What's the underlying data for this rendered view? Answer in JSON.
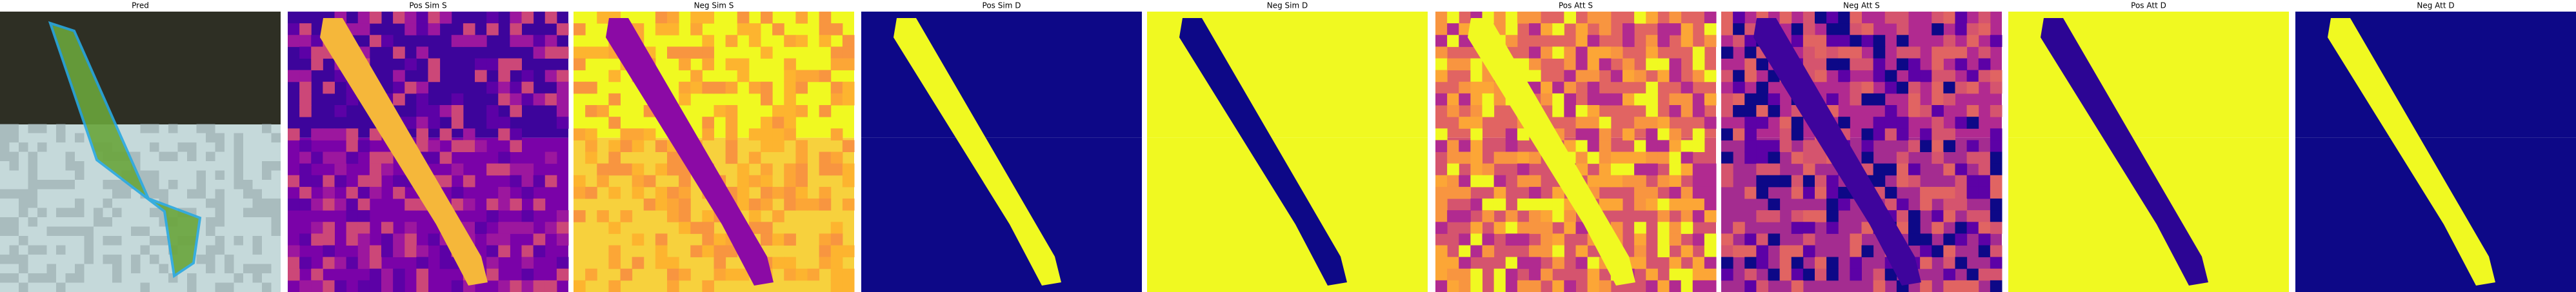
{
  "panels": [
    {
      "title": "Pred"
    },
    {
      "title": "Pos Sim S"
    },
    {
      "title": "Neg Sim S"
    },
    {
      "title": "Pos Sim D"
    },
    {
      "title": "Neg Sim D"
    },
    {
      "title": "Pos Att S"
    },
    {
      "title": "Neg Att S"
    },
    {
      "title": "Pos Att D"
    },
    {
      "title": "Neg Att D"
    }
  ]
}
